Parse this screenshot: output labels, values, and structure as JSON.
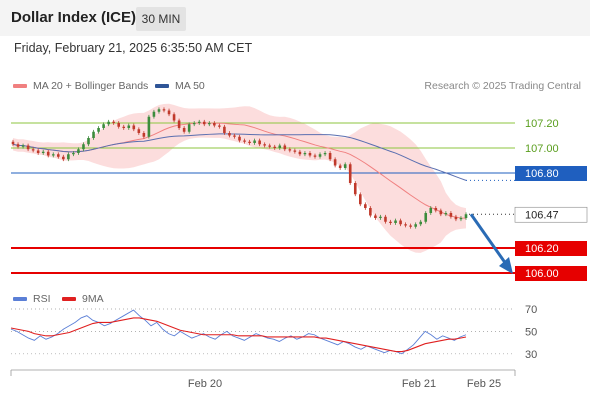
{
  "header": {
    "title": "Dollar Index (ICE)",
    "timeframe": "30 MIN"
  },
  "datetime": "Friday, February 21, 2025 6:35:50 AM CET",
  "legend": {
    "ma20_label": "MA 20 + Bollinger Bands",
    "ma20_color": "#f08080",
    "ma50_label": "MA 50",
    "ma50_color": "#2f5597",
    "credit": "Research © 2025 Trading Central"
  },
  "rsi_legend": {
    "rsi_label": "RSI",
    "rsi_color": "#5b7fd6",
    "ma_label": "9MA",
    "ma_color": "#e02020"
  },
  "colors": {
    "up": "#3c8c3c",
    "down": "#c0392b",
    "support": "#e60000",
    "pivot": "#1f5fbf",
    "resistance": "#8cc63f",
    "band_fill": "#fbd7d7"
  },
  "chart_data": [
    {
      "type": "candlestick",
      "title": "",
      "x_tick_labels": [
        "Feb 20",
        "Feb 21",
        "Feb 25"
      ],
      "ylim": [
        105.95,
        107.35
      ],
      "levels": [
        {
          "value": 107.2,
          "label": "107.20",
          "role": "resistance"
        },
        {
          "value": 107.0,
          "label": "107.00",
          "role": "resistance"
        },
        {
          "value": 106.8,
          "label": "106.80",
          "role": "pivot"
        },
        {
          "value": 106.2,
          "label": "106.20",
          "role": "support"
        },
        {
          "value": 106.0,
          "label": "106.00",
          "role": "support"
        }
      ],
      "last_price": {
        "value": 106.47,
        "label": "106.47"
      },
      "forecast_arrow": {
        "from": 106.47,
        "to": 106.0,
        "direction": "down"
      },
      "close": [
        107.03,
        107.01,
        107.02,
        106.99,
        106.98,
        106.96,
        106.97,
        106.94,
        106.95,
        106.93,
        106.91,
        106.95,
        106.96,
        106.99,
        107.03,
        107.08,
        107.13,
        107.16,
        107.19,
        107.21,
        107.2,
        107.17,
        107.16,
        107.18,
        107.15,
        107.12,
        107.09,
        107.25,
        107.29,
        107.31,
        107.3,
        107.27,
        107.22,
        107.16,
        107.13,
        107.19,
        107.2,
        107.21,
        107.19,
        107.2,
        107.18,
        107.17,
        107.12,
        107.1,
        107.09,
        107.06,
        107.05,
        107.04,
        107.06,
        107.03,
        107.02,
        107.01,
        107.0,
        107.02,
        106.99,
        106.98,
        106.97,
        106.95,
        106.96,
        106.94,
        106.93,
        106.95,
        106.96,
        106.91,
        106.86,
        106.84,
        106.87,
        106.72,
        106.63,
        106.55,
        106.52,
        106.46,
        106.44,
        106.45,
        106.41,
        106.4,
        106.42,
        106.39,
        106.38,
        106.37,
        106.39,
        106.41,
        106.48,
        106.52,
        106.5,
        106.47,
        106.48,
        106.45,
        106.43,
        106.44,
        106.47
      ],
      "open": [
        107.05,
        107.03,
        107.01,
        107.02,
        106.99,
        106.98,
        106.96,
        106.97,
        106.94,
        106.95,
        106.93,
        106.91,
        106.95,
        106.96,
        106.99,
        107.03,
        107.08,
        107.13,
        107.16,
        107.19,
        107.21,
        107.2,
        107.17,
        107.16,
        107.18,
        107.15,
        107.12,
        107.09,
        107.25,
        107.29,
        107.31,
        107.3,
        107.27,
        107.22,
        107.16,
        107.13,
        107.19,
        107.2,
        107.21,
        107.19,
        107.2,
        107.18,
        107.17,
        107.12,
        107.1,
        107.09,
        107.06,
        107.05,
        107.04,
        107.06,
        107.03,
        107.02,
        107.01,
        107.0,
        107.02,
        106.99,
        106.98,
        106.97,
        106.95,
        106.96,
        106.94,
        106.93,
        106.95,
        106.96,
        106.91,
        106.86,
        106.84,
        106.87,
        106.72,
        106.63,
        106.55,
        106.52,
        106.46,
        106.44,
        106.45,
        106.41,
        106.4,
        106.42,
        106.39,
        106.38,
        106.37,
        106.39,
        106.41,
        106.48,
        106.52,
        106.5,
        106.47,
        106.48,
        106.45,
        106.43,
        106.44
      ]
    },
    {
      "type": "line",
      "title": "RSI",
      "yticks": [
        30,
        50,
        70
      ],
      "ylim": [
        20,
        78
      ],
      "series": [
        {
          "name": "RSI",
          "values": [
            52,
            50,
            47,
            44,
            42,
            46,
            43,
            45,
            48,
            52,
            55,
            58,
            62,
            64,
            60,
            58,
            55,
            57,
            60,
            63,
            66,
            69,
            64,
            60,
            55,
            58,
            52,
            48,
            46,
            50,
            47,
            44,
            46,
            48,
            45,
            43,
            47,
            50,
            46,
            44,
            42,
            45,
            48,
            46,
            44,
            43,
            41,
            44,
            46,
            43,
            45,
            48,
            47,
            44,
            42,
            40,
            38,
            41,
            39,
            36,
            34,
            37,
            35,
            33,
            31,
            33,
            32,
            30,
            34,
            38,
            44,
            50,
            47,
            43,
            46,
            44,
            42,
            45,
            47
          ]
        },
        {
          "name": "9MA",
          "values": [
            53,
            52,
            51,
            50,
            48,
            47,
            46,
            46,
            47,
            48,
            49,
            51,
            53,
            55,
            57,
            58,
            58,
            58,
            59,
            60,
            61,
            62,
            62,
            61,
            60,
            59,
            57,
            55,
            53,
            51,
            50,
            49,
            48,
            47,
            47,
            47,
            47,
            47,
            47,
            46,
            46,
            46,
            46,
            46,
            45,
            45,
            45,
            45,
            45,
            45,
            45,
            45,
            45,
            44,
            44,
            43,
            42,
            41,
            40,
            39,
            38,
            37,
            36,
            35,
            34,
            33,
            32,
            32,
            33,
            35,
            37,
            39,
            40,
            41,
            42,
            43,
            43,
            44,
            45
          ]
        }
      ]
    }
  ]
}
